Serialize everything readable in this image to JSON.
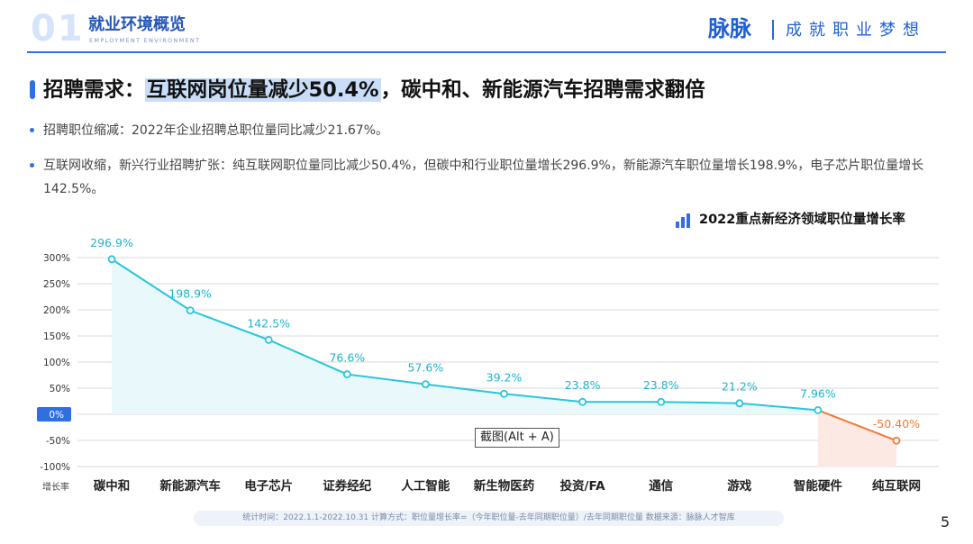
{
  "header": {
    "section_number": "01",
    "section_title": "就业环境概览",
    "section_subtitle": "EMPLOYMENT ENVIRONMENT",
    "brand": "脉脉",
    "slogan": "成就职业梦想"
  },
  "headline": {
    "prefix": "招聘需求：",
    "highlight": "互联网岗位量减少50.4%",
    "suffix": "，碳中和、新能源汽车招聘需求翻倍"
  },
  "bullets": [
    "招聘职位缩减：2022年企业招聘总职位量同比减少21.67%。",
    "互联网收缩，新兴行业招聘扩张：纯互联网职位量同比减少50.4%，但碳中和行业职位量增长296.9%，新能源汽车职位量增长198.9%，电子芯片职位量增长142.5%。"
  ],
  "tooltip": "截图(Alt + A)",
  "footer": "统计时间：2022.1.1-2022.10.31    计算方式：职位量增长率=（今年职位量-去年同期职位量）/去年同期职位量    数据来源：脉脉人才智库",
  "page_number": "5",
  "colors": {
    "accent": "#2f6fe3",
    "positive_line": "#29c6dc",
    "negative_line": "#f07a36",
    "positive_fill": "#e8f8fb",
    "negative_fill": "#fde9e4"
  },
  "chart_data": {
    "type": "line",
    "title": "2022重点新经济领域职位量增长率",
    "xlabel": "增长率",
    "categories": [
      "碳中和",
      "新能源汽车",
      "电子芯片",
      "证券经纪",
      "人工智能",
      "新生物医药",
      "投资/FA",
      "通信",
      "游戏",
      "智能硬件",
      "纯互联网"
    ],
    "values": [
      296.9,
      198.9,
      142.5,
      76.6,
      57.6,
      39.2,
      23.8,
      23.8,
      21.2,
      7.96,
      -50.4
    ],
    "data_labels": [
      "296.9%",
      "198.9%",
      "142.5%",
      "76.6%",
      "57.6%",
      "39.2%",
      "23.8%",
      "23.8%",
      "21.2%",
      "7.96%",
      "-50.40%"
    ],
    "yticks": [
      300,
      250,
      200,
      150,
      100,
      50,
      0,
      -50,
      -100
    ],
    "ytick_labels": [
      "300%",
      "250%",
      "200%",
      "150%",
      "100%",
      "50%",
      "0%",
      "-50%",
      "-100%"
    ],
    "ylim": [
      -100,
      300
    ],
    "grid": true
  }
}
